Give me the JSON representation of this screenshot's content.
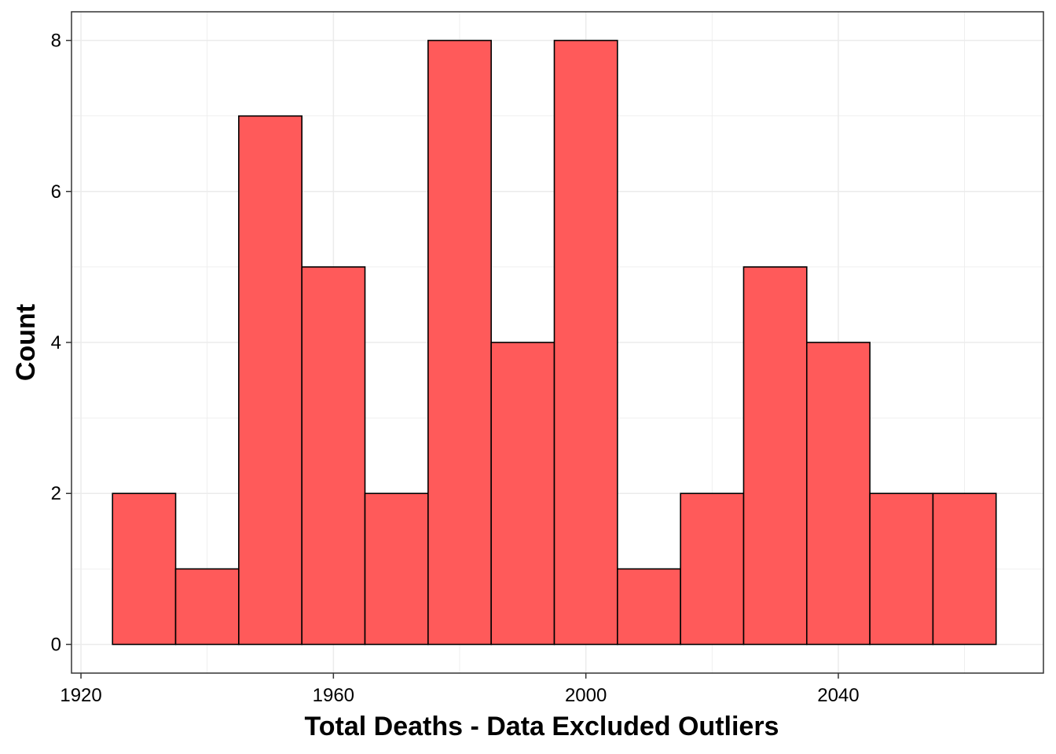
{
  "chart_data": {
    "type": "bar",
    "title": "",
    "xlabel": "Total Deaths - Data Excluded Outliers",
    "ylabel": "Count",
    "xlim": [
      1918.5,
      1884.0
    ],
    "ylim": [
      -0.38,
      8.38
    ],
    "x_ticks": [
      1920,
      1960,
      2000,
      2040
    ],
    "y_ticks": [
      0,
      2,
      4,
      6,
      8
    ],
    "x_tick_labels": [
      "1920",
      "1960",
      "2000",
      "2040"
    ],
    "y_tick_labels": [
      "0",
      "2",
      "4",
      "6",
      "8"
    ],
    "bin_width": 10,
    "bins": [
      {
        "start": 1925,
        "end": 1935,
        "count": 2
      },
      {
        "start": 1935,
        "end": 1945,
        "count": 1
      },
      {
        "start": 1945,
        "end": 1955,
        "count": 7
      },
      {
        "start": 1955,
        "end": 1965,
        "count": 5
      },
      {
        "start": 1965,
        "end": 1975,
        "count": 2
      },
      {
        "start": 1975,
        "end": 1985,
        "count": 8
      },
      {
        "start": 1985,
        "end": 1995,
        "count": 4
      },
      {
        "start": 1995,
        "end": 2005,
        "count": 8
      },
      {
        "start": 2005,
        "end": 2015,
        "count": 1
      },
      {
        "start": 2015,
        "end": 2025,
        "count": 2
      },
      {
        "start": 2025,
        "end": 2035,
        "count": 5
      },
      {
        "start": 2035,
        "end": 2045,
        "count": 4
      },
      {
        "start": 2045,
        "end": 2055,
        "count": 2
      },
      {
        "start": 2055,
        "end": 2065,
        "count": 2
      }
    ],
    "bar_color": "#FF5A5A",
    "bar_outline": "#000000",
    "grid": true,
    "grid_color": "#EBEBEB",
    "legend": "none"
  }
}
